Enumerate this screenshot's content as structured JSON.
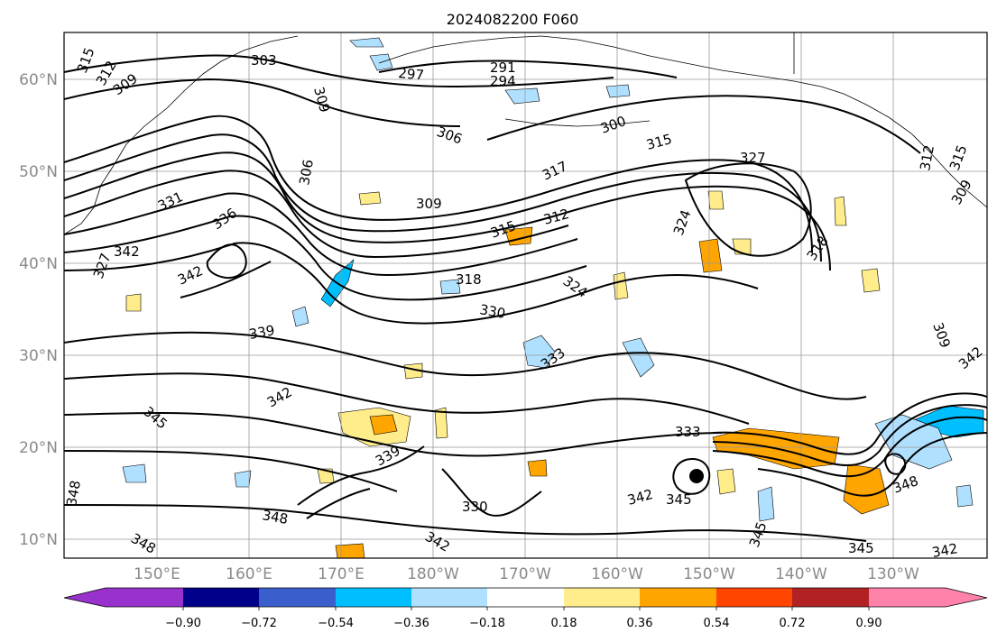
{
  "title": "2024082200 F060",
  "latitude_labels": [
    "60°N",
    "50°N",
    "40°N",
    "30°N",
    "20°N",
    "10°N"
  ],
  "longitude_labels": [
    "150°E",
    "160°E",
    "170°E",
    "180°W",
    "170°W",
    "160°W",
    "150°W",
    "140°W",
    "130°W"
  ],
  "contour_labels": [
    "315",
    "312",
    "309",
    "303",
    "297",
    "291",
    "294",
    "309",
    "306",
    "300",
    "315",
    "327",
    "312",
    "315",
    "309",
    "306",
    "317",
    "331",
    "336",
    "309",
    "315",
    "312",
    "324",
    "342",
    "318",
    "327",
    "318",
    "324",
    "342",
    "330",
    "339",
    "333",
    "309",
    "342",
    "345",
    "339",
    "333",
    "330",
    "342",
    "345",
    "348",
    "348",
    "348",
    "342",
    "345",
    "342",
    "348",
    "345",
    "342"
  ],
  "colorbar": {
    "ticks": [
      "−0.90",
      "−0.72",
      "−0.54",
      "−0.36",
      "−0.18",
      "0.18",
      "0.36",
      "0.54",
      "0.72",
      "0.90"
    ],
    "colors": [
      "#9932CC",
      "#00008B",
      "#3A5FCD",
      "#00BFFF",
      "#B0E0FF",
      "#FFFFFF",
      "#FFEC8B",
      "#FFA500",
      "#FF4500",
      "#B22222",
      "#FF82AB"
    ]
  }
}
